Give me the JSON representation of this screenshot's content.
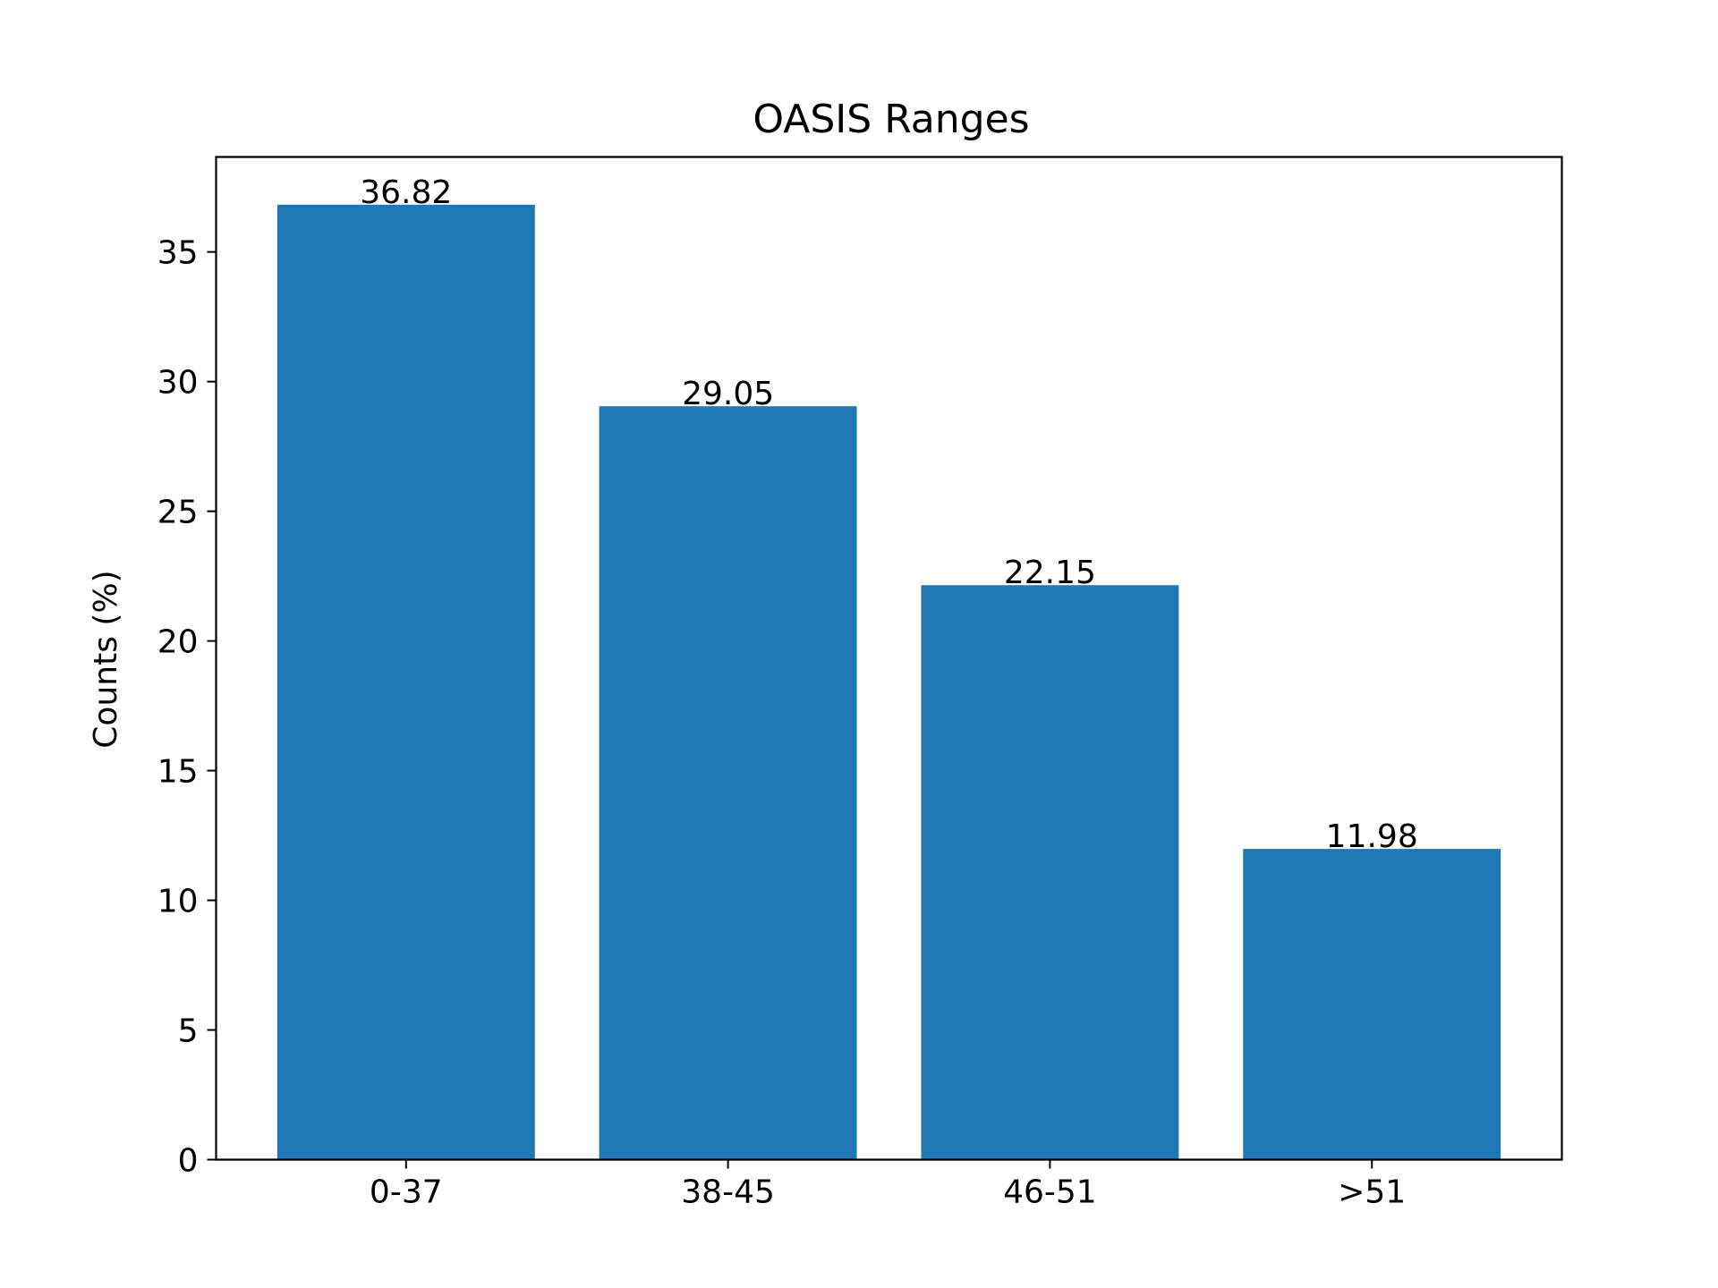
{
  "chart_data": {
    "type": "bar",
    "title": "OASIS Ranges",
    "xlabel": "",
    "ylabel": "Counts (%)",
    "categories": [
      "0-37",
      "38-45",
      "46-51",
      ">51"
    ],
    "values": [
      36.82,
      29.05,
      22.15,
      11.98
    ],
    "value_labels": [
      "36.82",
      "29.05",
      "22.15",
      "11.98"
    ],
    "yticks": [
      0,
      5,
      10,
      15,
      20,
      25,
      30,
      35
    ],
    "ytick_labels": [
      "0",
      "5",
      "10",
      "15",
      "20",
      "25",
      "30",
      "35"
    ],
    "ylim": [
      0,
      38.661
    ],
    "grid": false,
    "legend": "none",
    "bar_color": "#1f77b4"
  }
}
